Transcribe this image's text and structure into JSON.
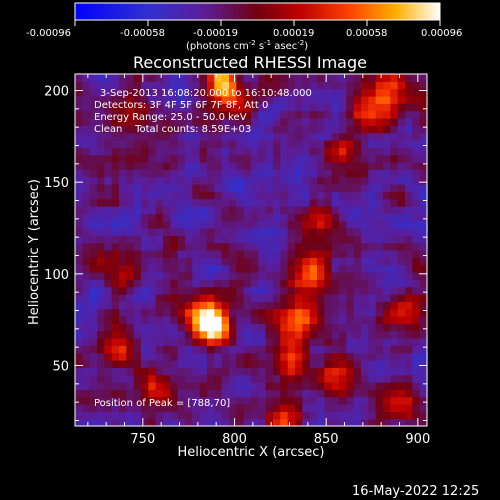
{
  "colorbar": {
    "ticks": [
      "-0.00096",
      "-0.00058",
      "-0.00019",
      "0.00019",
      "0.00058",
      "0.00096"
    ],
    "units_main": "(photons cm",
    "units_sup1": "-2",
    "units_mid": " s",
    "units_sup2": "-1",
    "units_end": " asec",
    "units_sup3": "-2",
    "units_close": ")"
  },
  "info": {
    "time_range": "3-Sep-2013 16:08:20.000 to 16:10:48.000",
    "detectors": "Detectors: 3F 4F 5F 6F 7F 8F, Att 0",
    "energy": "Energy Range: 25.0 - 50.0 keV",
    "clean_counts": "Clean    Total counts: 8.59E+03",
    "peak": "Position of Peak = [788,70]"
  },
  "footer": {
    "timestamp": "16-May-2022 12:25"
  },
  "chart_data": {
    "type": "heatmap",
    "title": "Reconstructed RHESSI Image",
    "xlabel": "Heliocentric X (arcsec)",
    "ylabel": "Heliocentric Y (arcsec)",
    "xlim": [
      713,
      905
    ],
    "ylim": [
      17,
      209
    ],
    "x_ticks": [
      750,
      800,
      850,
      900
    ],
    "y_ticks": [
      50,
      100,
      150,
      200
    ],
    "colorbar_range": [
      -0.00096,
      0.00096
    ],
    "colormap": [
      "#0000ff",
      "#4040c0",
      "#602080",
      "#800000",
      "#ff0000",
      "#ff8000",
      "#ffff00",
      "#ffffff"
    ],
    "peak": [
      788,
      70
    ],
    "sources": [
      {
        "x": 788,
        "y": 70,
        "amp": 1.0
      },
      {
        "x": 783,
        "y": 80,
        "amp": 0.7
      },
      {
        "x": 835,
        "y": 75,
        "amp": 0.75
      },
      {
        "x": 842,
        "y": 100,
        "amp": 0.7
      },
      {
        "x": 846,
        "y": 125,
        "amp": 0.5
      },
      {
        "x": 830,
        "y": 55,
        "amp": 0.45
      },
      {
        "x": 798,
        "y": 198,
        "amp": 0.65
      },
      {
        "x": 792,
        "y": 208,
        "amp": 0.6
      },
      {
        "x": 875,
        "y": 190,
        "amp": 0.6
      },
      {
        "x": 885,
        "y": 205,
        "amp": 0.55
      },
      {
        "x": 745,
        "y": 188,
        "amp": 0.45
      },
      {
        "x": 738,
        "y": 105,
        "amp": 0.5
      },
      {
        "x": 735,
        "y": 60,
        "amp": 0.45
      },
      {
        "x": 756,
        "y": 38,
        "amp": 0.4
      },
      {
        "x": 826,
        "y": 22,
        "amp": 0.6
      },
      {
        "x": 856,
        "y": 165,
        "amp": 0.4
      },
      {
        "x": 858,
        "y": 45,
        "amp": 0.5
      },
      {
        "x": 893,
        "y": 78,
        "amp": 0.45
      },
      {
        "x": 889,
        "y": 28,
        "amp": 0.5
      }
    ]
  }
}
